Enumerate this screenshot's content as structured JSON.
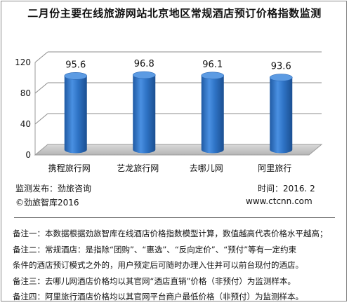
{
  "title": "二月份主要在线旅游网站北京地区常规酒店预订价格指数监测",
  "chart_data": {
    "type": "bar",
    "style": "3d-cylinder",
    "categories": [
      "携程旅行网",
      "艺龙旅行网",
      "去哪儿网",
      "阿里旅行"
    ],
    "values": [
      95.6,
      96.8,
      96.1,
      93.6
    ],
    "data_labels": [
      "95.6",
      "96.8",
      "96.1",
      "93.6"
    ],
    "y_ticks": [
      "0",
      "40",
      "80",
      "120"
    ],
    "ylim": [
      0,
      120
    ],
    "grid": true,
    "bar_color": "#2f74c6",
    "xlabel": "",
    "ylabel": ""
  },
  "footer": {
    "publisher": "监测发布：劲旅咨询",
    "time": "时间：2016. 2",
    "copyright": "©劲旅智库2016",
    "website": "www.ctcnn.com"
  },
  "notes": [
    "备注一：本数据根据劲旅智库在线酒店价格指数模型计算，数值越高代表价格水平越高；",
    "备注二：常规酒店：是指除“团购”、“惠选”、“反向定价”、“预付”等有一定约束",
    "条件的酒店预订模式之外的，用户预定后可随时办理入住并可以前台现付的酒店。",
    "备注三：去哪儿网酒店价格均以其官网“酒店直销”价格（非预付）为监测样本。",
    "备注四：阿里旅行酒店价格均以其官网平台商户最低价格（非预付）为监测样本。"
  ]
}
